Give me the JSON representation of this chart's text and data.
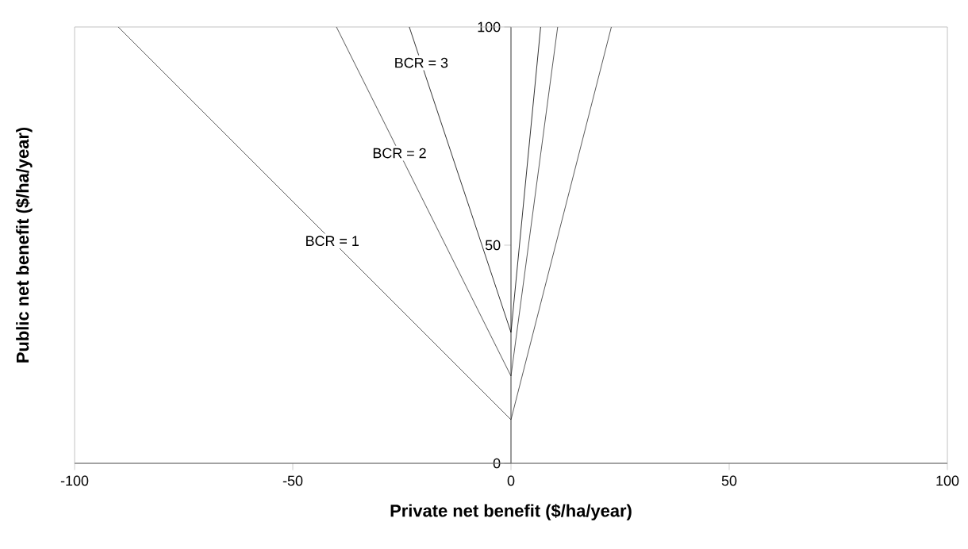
{
  "chart_data": {
    "type": "line",
    "xlabel": "Private net benefit ($/ha/year)",
    "ylabel": "Public net benefit ($/ha/year)",
    "xlim": [
      -100,
      100
    ],
    "ylim": [
      0,
      100
    ],
    "xticks": [
      -100,
      -50,
      0,
      50,
      100
    ],
    "yticks": [
      0,
      50,
      100
    ],
    "grid": false,
    "marker": "none",
    "line_style": "solid",
    "series": [
      {
        "name": "BCR = 1",
        "color": "#303030",
        "x": [
          -90,
          0,
          23
        ],
        "values": [
          100,
          10,
          100
        ]
      },
      {
        "name": "BCR = 2",
        "color": "#303030",
        "x": [
          -40,
          0,
          10.7
        ],
        "values": [
          100,
          20,
          100
        ]
      },
      {
        "name": "BCR = 3",
        "color": "#000000",
        "x": [
          -23.3,
          0,
          6.8
        ],
        "values": [
          100,
          30,
          100
        ]
      }
    ]
  }
}
